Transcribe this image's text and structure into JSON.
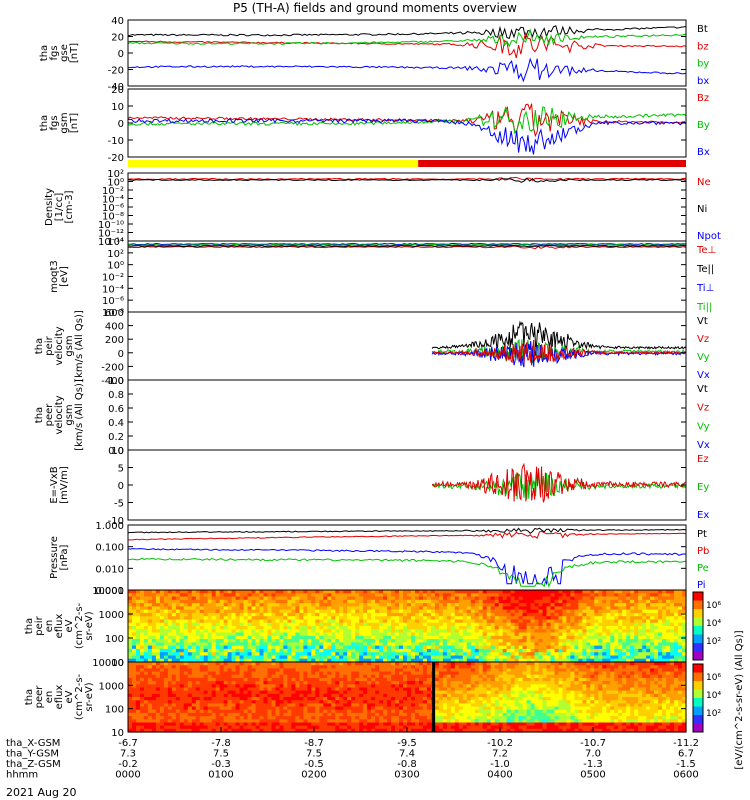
{
  "title": "P5 (TH-A) fields and ground moments overview",
  "date_label": "2021 Aug 20",
  "colors": {
    "black": "#000000",
    "red": "#e00000",
    "green": "#00c000",
    "blue": "#0000ff",
    "yellow": "#ffff00"
  },
  "chart_data": [
    {
      "id": "fgs_gse",
      "type": "line",
      "ylabel": [
        "tha",
        "fgs",
        "gse",
        "[nT]"
      ],
      "ylim": [
        -40,
        40
      ],
      "yticks": [
        40,
        20,
        0,
        -20,
        -40
      ],
      "legend": [
        {
          "name": "Bt",
          "color": "black"
        },
        {
          "name": "bz",
          "color": "red"
        },
        {
          "name": "by",
          "color": "green"
        },
        {
          "name": "bx",
          "color": "blue"
        }
      ]
    },
    {
      "id": "fgs_gsm",
      "type": "line",
      "ylabel": [
        "tha",
        "fgs",
        "gsm",
        "[nT]"
      ],
      "ylim": [
        -25,
        20
      ],
      "yticks": [
        20,
        10,
        0,
        -10,
        -20
      ],
      "legend": [
        {
          "name": "Bz",
          "color": "red"
        },
        {
          "name": "By",
          "color": "green"
        },
        {
          "name": "Bx",
          "color": "blue"
        }
      ]
    },
    {
      "id": "density",
      "type": "line",
      "ylabel": [
        "Density",
        "[1/cc]",
        "[cm-3]"
      ],
      "scale": "log",
      "yticks": [
        "10²",
        "10⁰",
        "10⁻²",
        "10⁻⁴",
        "10⁻⁶",
        "10⁻⁸",
        "10⁻¹⁰",
        "10⁻¹²",
        "10⁻¹⁴"
      ],
      "legend": [
        {
          "name": "Ne",
          "color": "red"
        },
        {
          "name": "Ni",
          "color": "black"
        },
        {
          "name": "Npot",
          "color": "blue"
        }
      ]
    },
    {
      "id": "temp",
      "type": "line",
      "ylabel": [
        "moqt3",
        "[eV]"
      ],
      "scale": "log",
      "yticks": [
        "10⁴",
        "10²",
        "10⁰",
        "10⁻²",
        "10⁻⁴",
        "10⁻⁶",
        "10⁻⁸"
      ],
      "legend": [
        {
          "name": "Te⊥",
          "color": "red"
        },
        {
          "name": "Te||",
          "color": "black"
        },
        {
          "name": "Ti⊥",
          "color": "blue"
        },
        {
          "name": "Ti||",
          "color": "green"
        }
      ]
    },
    {
      "id": "peir_vel",
      "type": "line",
      "ylabel": [
        "tha",
        "peir",
        "velocity",
        "gsm",
        "[km/s (All Qs)]"
      ],
      "ylim": [
        -400,
        600
      ],
      "yticks": [
        600,
        400,
        200,
        0,
        -200,
        -400
      ],
      "legend": [
        {
          "name": "Vt",
          "color": "black"
        },
        {
          "name": "Vz",
          "color": "red"
        },
        {
          "name": "Vy",
          "color": "green"
        },
        {
          "name": "Vx",
          "color": "blue"
        }
      ]
    },
    {
      "id": "peer_vel",
      "type": "line",
      "ylabel": [
        "tha",
        "peer",
        "velocity",
        "gsm",
        "[km/s (All Qs)]"
      ],
      "ylim": [
        0,
        1
      ],
      "yticks": [
        "1.0",
        "0.8",
        "0.6",
        "0.4",
        "0.2",
        "0.0"
      ],
      "legend": [
        {
          "name": "Vt",
          "color": "black"
        },
        {
          "name": "Vz",
          "color": "red"
        },
        {
          "name": "Vy",
          "color": "green"
        },
        {
          "name": "Vx",
          "color": "blue"
        }
      ]
    },
    {
      "id": "efield",
      "type": "line",
      "ylabel": [
        "E=-VxB",
        "[mV/m]"
      ],
      "ylim": [
        -10,
        10
      ],
      "yticks": [
        10,
        5,
        0,
        -5,
        -10
      ],
      "legend": [
        {
          "name": "Ez",
          "color": "red"
        },
        {
          "name": "Ey",
          "color": "green"
        },
        {
          "name": "Ex",
          "color": "blue"
        }
      ]
    },
    {
      "id": "pressure",
      "type": "line",
      "ylabel": [
        "Pressure",
        "[nPa]"
      ],
      "scale": "log",
      "yticks": [
        "1.000",
        "0.100",
        "0.010",
        "0.001"
      ],
      "legend": [
        {
          "name": "Pt",
          "color": "black"
        },
        {
          "name": "Pb",
          "color": "red"
        },
        {
          "name": "Pe",
          "color": "green"
        },
        {
          "name": "Pi",
          "color": "blue"
        }
      ]
    },
    {
      "id": "peir_spec",
      "type": "heatmap",
      "ylabel": [
        "tha",
        "peir",
        "en",
        "eflux",
        "eV",
        "(cm^2-s-",
        "sr-eV)"
      ],
      "yticks": [
        "10000",
        "1000",
        "100",
        "10"
      ]
    },
    {
      "id": "peer_spec",
      "type": "heatmap",
      "ylabel": [
        "tha",
        "peer",
        "en",
        "eflux",
        "eV",
        "(cm^2-s-",
        "sr-eV)"
      ],
      "yticks": [
        "10000",
        "1000",
        "100",
        "10"
      ]
    }
  ],
  "colorbar": {
    "label": "[eV/(cm^2-s-sr-eV) (All Qs)]",
    "ticks": [
      "10⁶",
      "10⁴",
      "10²"
    ]
  },
  "ephemeris": {
    "labels": [
      "tha_X-GSM",
      "tha_Y-GSM",
      "tha_Z-GSM",
      "hhmm"
    ],
    "columns": [
      [
        "-6.7",
        "7.3",
        "-0.2",
        "0000"
      ],
      [
        "-7.8",
        "7.5",
        "-0.3",
        "0100"
      ],
      [
        "-8.7",
        "7.5",
        "-0.5",
        "0200"
      ],
      [
        "-9.5",
        "7.4",
        "-0.8",
        "0300"
      ],
      [
        "-10.2",
        "7.2",
        "-1.0",
        "0400"
      ],
      [
        "-10.7",
        "7.0",
        "-1.3",
        "0500"
      ],
      [
        "-11.2",
        "6.7",
        "-1.5",
        "0600"
      ]
    ]
  }
}
